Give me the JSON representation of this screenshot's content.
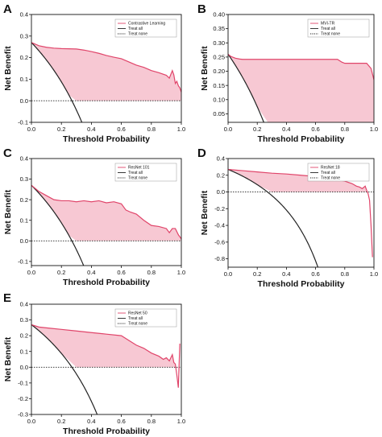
{
  "chart_data": [
    {
      "panel": "A",
      "type": "line",
      "xlabel": "Threshold Probability",
      "ylabel": "Net Benefit",
      "xlim": [
        0,
        1
      ],
      "ylim": [
        -0.1,
        0.4
      ],
      "xticks": [
        "0.0",
        "0.2",
        "0.4",
        "0.6",
        "0.8",
        "1.0"
      ],
      "yticks": [
        "-0.1",
        "0.0",
        "0.1",
        "0.2",
        "0.3",
        "0.4"
      ],
      "legend": [
        "Contrastive Learning",
        "Treat all",
        "Treat none"
      ],
      "legend_position": "top-right",
      "prevalence": 0.27,
      "model": {
        "x": [
          0,
          0.05,
          0.1,
          0.15,
          0.2,
          0.25,
          0.3,
          0.35,
          0.4,
          0.45,
          0.5,
          0.55,
          0.6,
          0.65,
          0.7,
          0.75,
          0.8,
          0.85,
          0.9,
          0.92,
          0.94,
          0.95,
          0.96,
          0.97,
          0.98,
          0.99,
          1.0
        ],
        "y": [
          0.27,
          0.255,
          0.248,
          0.244,
          0.242,
          0.241,
          0.24,
          0.235,
          0.228,
          0.22,
          0.21,
          0.202,
          0.195,
          0.18,
          0.165,
          0.155,
          0.14,
          0.13,
          0.118,
          0.105,
          0.14,
          0.12,
          0.08,
          0.09,
          0.07,
          0.06,
          0.04
        ]
      }
    },
    {
      "panel": "B",
      "type": "line",
      "xlabel": "Threshold Probability",
      "ylabel": "Net Benefit",
      "xlim": [
        0,
        1
      ],
      "ylim": [
        0.02,
        0.4
      ],
      "xticks": [
        "0.0",
        "0.2",
        "0.4",
        "0.6",
        "0.8",
        "1.0"
      ],
      "yticks": [
        "0.05",
        "0.10",
        "0.15",
        "0.20",
        "0.25",
        "0.30",
        "0.35",
        "0.40"
      ],
      "legend": [
        "MVI-TR",
        "Treat all",
        "Treat none"
      ],
      "legend_position": "top-right",
      "prevalence": 0.26,
      "model": {
        "x": [
          0,
          0.02,
          0.05,
          0.08,
          0.1,
          0.2,
          0.3,
          0.4,
          0.5,
          0.6,
          0.7,
          0.75,
          0.78,
          0.8,
          0.9,
          0.95,
          0.98,
          1.0
        ],
        "y": [
          0.26,
          0.252,
          0.246,
          0.243,
          0.242,
          0.242,
          0.242,
          0.242,
          0.242,
          0.242,
          0.242,
          0.242,
          0.232,
          0.228,
          0.228,
          0.228,
          0.21,
          0.17
        ]
      }
    },
    {
      "panel": "C",
      "type": "line",
      "xlabel": "Threshold Probability",
      "ylabel": "Net Benefit",
      "xlim": [
        0,
        1
      ],
      "ylim": [
        -0.12,
        0.4
      ],
      "xticks": [
        "0.0",
        "0.2",
        "0.4",
        "0.6",
        "0.8",
        "1.0"
      ],
      "yticks": [
        "-0.1",
        "0.0",
        "0.1",
        "0.2",
        "0.3",
        "0.4"
      ],
      "legend": [
        "ResNet 101",
        "Treat all",
        "Treat none"
      ],
      "legend_position": "top-right",
      "prevalence": 0.27,
      "model": {
        "x": [
          0,
          0.05,
          0.1,
          0.15,
          0.2,
          0.25,
          0.3,
          0.35,
          0.4,
          0.45,
          0.5,
          0.55,
          0.6,
          0.63,
          0.66,
          0.7,
          0.75,
          0.8,
          0.85,
          0.9,
          0.92,
          0.94,
          0.96,
          0.98,
          1.0
        ],
        "y": [
          0.27,
          0.24,
          0.22,
          0.2,
          0.195,
          0.195,
          0.19,
          0.195,
          0.19,
          0.195,
          0.185,
          0.19,
          0.18,
          0.15,
          0.14,
          0.13,
          0.1,
          0.075,
          0.07,
          0.06,
          0.04,
          0.06,
          0.06,
          0.03,
          0.01
        ]
      }
    },
    {
      "panel": "D",
      "type": "line",
      "xlabel": "Threshold Probability",
      "ylabel": "Net Benefit",
      "xlim": [
        0,
        1
      ],
      "ylim": [
        -0.9,
        0.4
      ],
      "xticks": [
        "0.0",
        "0.2",
        "0.4",
        "0.6",
        "0.8",
        "1.0"
      ],
      "yticks": [
        "-0.8",
        "-0.6",
        "-0.4",
        "-0.2",
        "0.0",
        "0.2",
        "0.4"
      ],
      "legend": [
        "ResNet 18",
        "Treat all",
        "Treat none"
      ],
      "legend_position": "top-right",
      "prevalence": 0.27,
      "model": {
        "x": [
          0,
          0.1,
          0.2,
          0.3,
          0.4,
          0.5,
          0.6,
          0.7,
          0.8,
          0.85,
          0.88,
          0.9,
          0.92,
          0.94,
          0.95,
          0.96,
          0.97,
          0.98,
          0.99
        ],
        "y": [
          0.27,
          0.255,
          0.24,
          0.225,
          0.215,
          0.2,
          0.185,
          0.16,
          0.13,
          0.1,
          0.07,
          0.06,
          0.04,
          0.07,
          0.02,
          -0.02,
          -0.1,
          -0.4,
          -0.78
        ]
      }
    },
    {
      "panel": "E",
      "type": "line",
      "xlabel": "Threshold Probability",
      "ylabel": "Net Benefit",
      "xlim": [
        0,
        1
      ],
      "ylim": [
        -0.3,
        0.4
      ],
      "xticks": [
        "0.0",
        "0.2",
        "0.4",
        "0.6",
        "0.8",
        "1.0"
      ],
      "yticks": [
        "-0.3",
        "-0.2",
        "-0.1",
        "0.0",
        "0.1",
        "0.2",
        "0.3",
        "0.4"
      ],
      "legend": [
        "ResNet 50",
        "Treat all",
        "Treat none"
      ],
      "legend_position": "top-right",
      "prevalence": 0.27,
      "model": {
        "x": [
          0,
          0.05,
          0.1,
          0.2,
          0.3,
          0.4,
          0.5,
          0.6,
          0.65,
          0.7,
          0.75,
          0.8,
          0.85,
          0.88,
          0.9,
          0.92,
          0.94,
          0.95,
          0.96,
          0.97,
          0.98,
          0.99
        ],
        "y": [
          0.27,
          0.255,
          0.25,
          0.24,
          0.23,
          0.22,
          0.21,
          0.2,
          0.17,
          0.14,
          0.12,
          0.09,
          0.07,
          0.05,
          0.06,
          0.04,
          0.08,
          0.03,
          0.02,
          -0.05,
          -0.13,
          0.15
        ]
      }
    }
  ],
  "colors": {
    "model_line": "#e0456a",
    "fill": "#f7c8d3",
    "treat_all": "#222222",
    "treat_none": "#222222"
  }
}
